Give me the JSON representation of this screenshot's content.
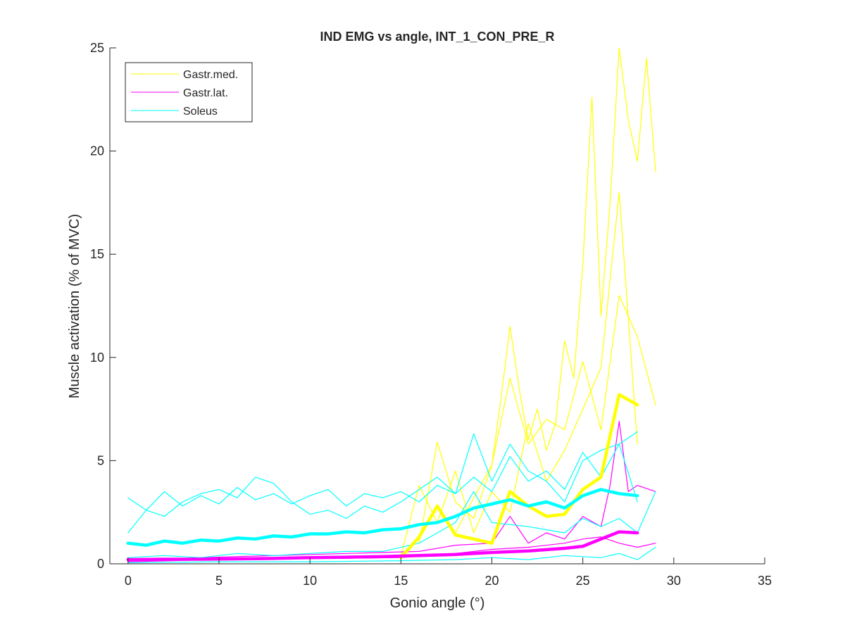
{
  "chart_data": {
    "type": "line",
    "title": "IND EMG vs angle, INT_1_CON_PRE_R",
    "xlabel": "Gonio angle (°)",
    "ylabel": "Muscle activation (% of MVC)",
    "xlim": [
      -1,
      35
    ],
    "ylim": [
      0,
      25
    ],
    "xticks": [
      0,
      5,
      10,
      15,
      20,
      25,
      30,
      35
    ],
    "yticks": [
      0,
      5,
      10,
      15,
      20,
      25
    ],
    "grid": false,
    "legend_position": "top-left",
    "legend": [
      {
        "label": "Gastr.med.",
        "color": "#ffff00"
      },
      {
        "label": "Gastr.lat.",
        "color": "#ff00ff"
      },
      {
        "label": "Soleus",
        "color": "#00ffff"
      }
    ],
    "series": [
      {
        "name": "Gastr.med.",
        "color": "#ffff00",
        "style": "mean",
        "x": [
          15,
          16,
          17,
          18,
          19,
          20,
          21,
          22,
          23,
          24,
          25,
          26,
          27,
          28
        ],
        "y": [
          0.3,
          1.3,
          2.8,
          1.4,
          1.2,
          1.0,
          3.5,
          2.8,
          2.3,
          2.4,
          3.6,
          4.2,
          8.2,
          7.7
        ]
      },
      {
        "name": "Gastr.med.",
        "color": "#ffff00",
        "style": "trial",
        "x": [
          18,
          19,
          20,
          20.5,
          21,
          21.5,
          22,
          22.5,
          23,
          23.5,
          24,
          24.5,
          25,
          25.5,
          26,
          26.5,
          27,
          27.5,
          28,
          28.5,
          29
        ],
        "y": [
          1.5,
          3.2,
          4.8,
          8.0,
          11.5,
          8.5,
          6.0,
          7.5,
          5.5,
          6.8,
          10.8,
          9.0,
          14.5,
          22.6,
          12.0,
          17.5,
          25.0,
          21.5,
          19.5,
          24.5,
          19.0
        ]
      },
      {
        "name": "Gastr.med.",
        "color": "#ffff00",
        "style": "trial",
        "x": [
          16,
          17,
          18,
          19,
          20,
          21,
          22,
          23,
          24,
          25,
          26,
          27,
          28,
          29
        ],
        "y": [
          1.0,
          5.9,
          3.0,
          2.2,
          4.8,
          9.0,
          5.8,
          7.0,
          6.5,
          9.8,
          6.5,
          13.0,
          11.0,
          7.7
        ]
      },
      {
        "name": "Gastr.med.",
        "color": "#ffff00",
        "style": "trial",
        "x": [
          15,
          16,
          17,
          18,
          19,
          20,
          21,
          22,
          23,
          24,
          25,
          26,
          27,
          28
        ],
        "y": [
          0.4,
          3.8,
          2.0,
          4.5,
          1.5,
          3.5,
          2.5,
          6.8,
          4.0,
          5.5,
          7.5,
          9.5,
          18.0,
          5.8
        ]
      },
      {
        "name": "Gastr.lat.",
        "color": "#ff00ff",
        "style": "mean",
        "x": [
          0,
          2,
          4,
          6,
          8,
          10,
          12,
          14,
          16,
          18,
          20,
          22,
          24,
          25,
          26,
          27,
          28
        ],
        "y": [
          0.2,
          0.22,
          0.22,
          0.24,
          0.26,
          0.3,
          0.32,
          0.35,
          0.4,
          0.45,
          0.55,
          0.62,
          0.75,
          0.85,
          1.2,
          1.55,
          1.5
        ]
      },
      {
        "name": "Gastr.lat.",
        "color": "#ff00ff",
        "style": "trial",
        "x": [
          0,
          4,
          8,
          12,
          16,
          18,
          20,
          21,
          22,
          23,
          24,
          25,
          26,
          26.5,
          27,
          27.5,
          28,
          29
        ],
        "y": [
          0.15,
          0.3,
          0.4,
          0.5,
          0.6,
          0.9,
          1.0,
          2.3,
          1.0,
          1.5,
          1.2,
          2.3,
          1.8,
          3.8,
          6.9,
          3.5,
          3.8,
          3.5
        ]
      },
      {
        "name": "Gastr.lat.",
        "color": "#ff00ff",
        "style": "trial",
        "x": [
          0,
          5,
          10,
          15,
          18,
          20,
          22,
          24,
          25,
          26,
          27,
          28,
          29
        ],
        "y": [
          0.1,
          0.2,
          0.25,
          0.3,
          0.5,
          0.7,
          0.8,
          1.0,
          1.2,
          1.3,
          1.0,
          0.8,
          1.0
        ]
      },
      {
        "name": "Soleus",
        "color": "#00ffff",
        "style": "mean",
        "x": [
          0,
          1,
          2,
          3,
          4,
          5,
          6,
          7,
          8,
          9,
          10,
          11,
          12,
          13,
          14,
          15,
          16,
          17,
          18,
          19,
          20,
          21,
          22,
          23,
          24,
          25,
          26,
          27,
          28
        ],
        "y": [
          1.0,
          0.9,
          1.1,
          1.0,
          1.15,
          1.1,
          1.25,
          1.2,
          1.35,
          1.3,
          1.45,
          1.45,
          1.55,
          1.5,
          1.65,
          1.7,
          1.9,
          2.0,
          2.3,
          2.7,
          2.9,
          3.1,
          2.8,
          3.0,
          2.7,
          3.3,
          3.6,
          3.4,
          3.3
        ]
      },
      {
        "name": "Soleus",
        "color": "#00ffff",
        "style": "trial",
        "x": [
          0,
          1,
          2,
          3,
          4,
          5,
          6,
          7,
          8,
          9,
          10,
          11,
          12,
          13,
          14,
          15,
          16,
          17,
          18,
          19,
          20,
          21,
          22,
          23,
          24,
          25,
          26,
          27,
          28
        ],
        "y": [
          3.2,
          2.6,
          3.5,
          2.8,
          3.3,
          2.9,
          3.7,
          3.1,
          3.4,
          2.9,
          3.3,
          3.6,
          2.8,
          3.4,
          3.2,
          3.5,
          3.0,
          3.8,
          3.4,
          4.2,
          3.5,
          5.2,
          4.0,
          4.5,
          3.6,
          5.4,
          4.2,
          5.8,
          6.4
        ]
      },
      {
        "name": "Soleus",
        "color": "#00ffff",
        "style": "trial",
        "x": [
          0,
          1,
          2,
          3,
          4,
          5,
          6,
          7,
          8,
          9,
          10,
          11,
          12,
          13,
          14,
          15,
          16,
          17,
          18,
          19,
          20,
          21,
          22,
          23,
          24,
          25,
          26,
          27,
          28
        ],
        "y": [
          1.5,
          2.6,
          2.3,
          3.0,
          3.4,
          3.6,
          3.2,
          4.2,
          3.9,
          3.0,
          2.4,
          2.6,
          2.2,
          2.8,
          2.5,
          3.0,
          3.6,
          4.2,
          3.4,
          6.3,
          4.0,
          5.8,
          4.5,
          4.0,
          3.0,
          5.0,
          5.5,
          5.8,
          3.0
        ]
      },
      {
        "name": "Soleus",
        "color": "#00ffff",
        "style": "trial",
        "x": [
          0,
          2,
          4,
          6,
          8,
          10,
          12,
          14,
          16,
          18,
          19,
          20,
          22,
          24,
          25,
          26,
          27,
          28,
          29
        ],
        "y": [
          0.3,
          0.4,
          0.3,
          0.5,
          0.4,
          0.5,
          0.6,
          0.6,
          1.0,
          2.0,
          3.5,
          2.0,
          1.8,
          1.5,
          2.2,
          1.8,
          2.2,
          1.5,
          3.5
        ]
      },
      {
        "name": "Soleus",
        "color": "#00ffff",
        "style": "trial",
        "x": [
          0,
          5,
          10,
          15,
          18,
          20,
          22,
          24,
          26,
          27,
          28,
          29
        ],
        "y": [
          0.05,
          0.1,
          0.1,
          0.15,
          0.2,
          0.3,
          0.2,
          0.4,
          0.3,
          0.5,
          0.2,
          0.8
        ]
      }
    ]
  }
}
